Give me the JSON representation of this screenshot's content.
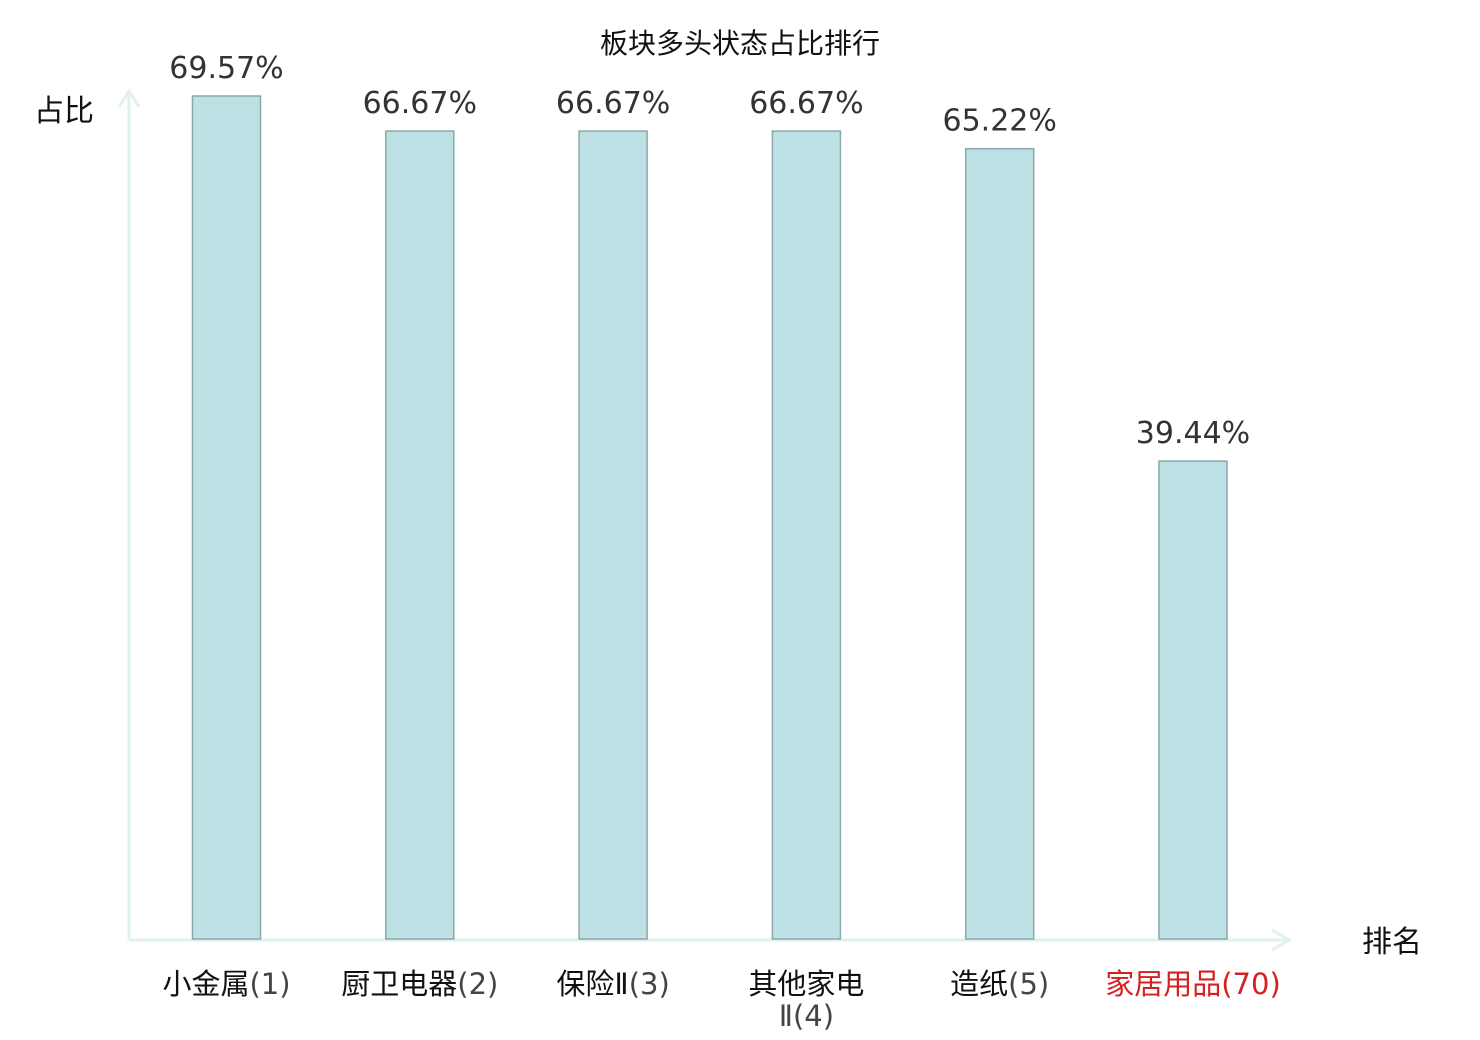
{
  "chart_data": {
    "type": "bar",
    "title": "板块多头状态占比排行",
    "ylabel": "占比",
    "xlabel": "排名",
    "categories": [
      {
        "name": "小金属",
        "rank": "(1)"
      },
      {
        "name": "厨卫电器",
        "rank": "(2)"
      },
      {
        "name": "保险Ⅱ",
        "rank": "(3)"
      },
      {
        "name": "其他家电",
        "name_line2": "Ⅱ",
        "rank": "(4)"
      },
      {
        "name": "造纸",
        "rank": "(5)"
      },
      {
        "name": "家居用品",
        "rank": "(70)",
        "highlight": true
      }
    ],
    "values": [
      69.57,
      66.67,
      66.67,
      66.67,
      65.22,
      39.44
    ],
    "value_labels": [
      "69.57%",
      "66.67%",
      "66.67%",
      "66.67%",
      "65.22%",
      "39.44%"
    ],
    "ylim": [
      0,
      69.57
    ],
    "grid": false,
    "colors": {
      "bar_fill": "#bde1e4",
      "bar_stroke": "#8aa8aa",
      "axis": "#e0f2ef",
      "highlight": "#d42020",
      "rank_text": "#444444",
      "cat_text": "#111111"
    }
  }
}
